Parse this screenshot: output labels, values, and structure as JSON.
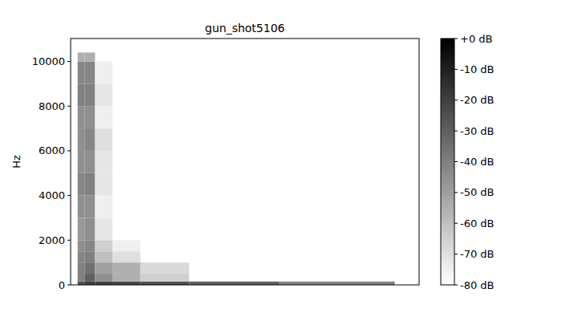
{
  "chart_data": {
    "type": "heatmap",
    "title": "gun_shot5106",
    "y_label": "Hz",
    "xlim": [
      0,
      100
    ],
    "ylim": [
      0,
      11025
    ],
    "yticks": [
      0,
      2000,
      4000,
      6000,
      8000,
      10000
    ],
    "tick_labels": "y",
    "x_bins": [
      0,
      2,
      4,
      7,
      12,
      20,
      34,
      60,
      93,
      100
    ],
    "y_bins": [
      0,
      150,
      500,
      1000,
      1500,
      2000,
      3000,
      4000,
      5000,
      6000,
      7000,
      8000,
      9000,
      10000,
      10400,
      11025
    ],
    "cells": [
      [
        null,
        -25,
        -20,
        -20,
        -22,
        -25,
        -30,
        -40,
        null
      ],
      [
        null,
        -40,
        -30,
        -45,
        -55,
        -65,
        null,
        null,
        null
      ],
      [
        null,
        -40,
        -35,
        -50,
        -55,
        -68,
        null,
        null,
        null
      ],
      [
        null,
        -42,
        -40,
        -60,
        -70,
        null,
        null,
        null,
        null
      ],
      [
        null,
        -45,
        -42,
        -65,
        -75,
        null,
        null,
        null,
        null
      ],
      [
        null,
        -48,
        -45,
        -72,
        null,
        null,
        null,
        null,
        null
      ],
      [
        null,
        -45,
        -45,
        -75,
        null,
        null,
        null,
        null,
        null
      ],
      [
        null,
        -42,
        -40,
        -72,
        null,
        null,
        null,
        null,
        null
      ],
      [
        null,
        -45,
        -45,
        -72,
        null,
        null,
        null,
        null,
        null
      ],
      [
        null,
        -45,
        -42,
        -70,
        null,
        null,
        null,
        null,
        null
      ],
      [
        null,
        -45,
        -45,
        -75,
        null,
        null,
        null,
        null,
        null
      ],
      [
        null,
        -40,
        -40,
        -72,
        null,
        null,
        null,
        null,
        null
      ],
      [
        null,
        -42,
        -42,
        -75,
        null,
        null,
        null,
        null,
        null
      ],
      [
        null,
        -55,
        -55,
        null,
        null,
        null,
        null,
        null,
        null
      ],
      [
        null,
        null,
        null,
        null,
        null,
        null,
        null,
        null,
        null
      ]
    ],
    "colorbar": {
      "range": [
        -80,
        0
      ],
      "ticks": [
        {
          "value": 0,
          "label": "+0 dB"
        },
        {
          "value": -10,
          "label": "-10 dB"
        },
        {
          "value": -20,
          "label": "-20 dB"
        },
        {
          "value": -30,
          "label": "-30 dB"
        },
        {
          "value": -40,
          "label": "-40 dB"
        },
        {
          "value": -50,
          "label": "-50 dB"
        },
        {
          "value": -60,
          "label": "-60 dB"
        },
        {
          "value": -70,
          "label": "-70 dB"
        },
        {
          "value": -80,
          "label": "-80 dB"
        }
      ]
    }
  }
}
